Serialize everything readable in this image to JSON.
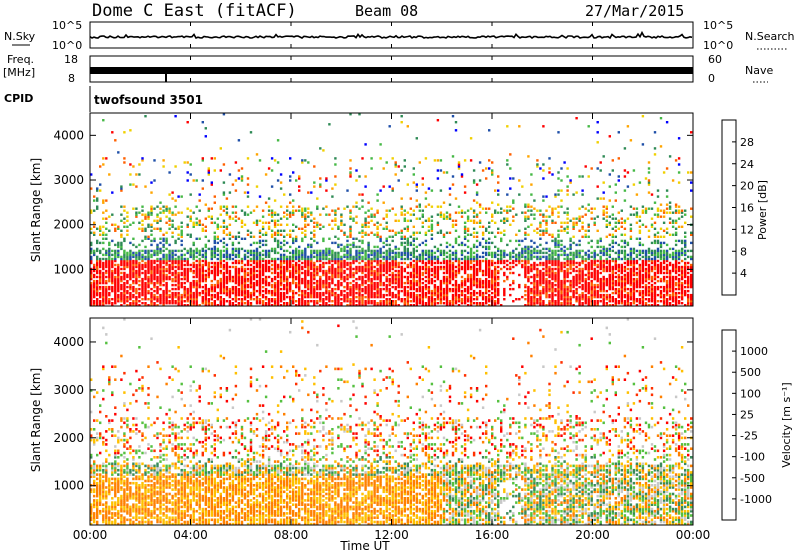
{
  "header": {
    "title": "Dome C East (fitACF)",
    "beam": "Beam 08",
    "date": "27/Mar/2015"
  },
  "strips": {
    "nsky_label": "N.Sky",
    "nsky_ticks": [
      "10^5",
      "10^0"
    ],
    "nsearch_label": "N.Search",
    "nsearch_ticks": [
      "10^5",
      "10^0"
    ],
    "freq_label_1": "Freq.",
    "freq_label_2": "[MHz]",
    "freq_ticks": [
      "18",
      "8"
    ],
    "nave_label": "Nave",
    "nave_ticks": [
      "60",
      "0"
    ],
    "cpid_label": "CPID",
    "cpid_value": "twofsound 3501"
  },
  "chart_data": [
    {
      "type": "heatmap",
      "name": "power",
      "ylabel": "Slant Range [km]",
      "yticks": [
        1000,
        2000,
        3000,
        4000
      ],
      "ylim": [
        180,
        4500
      ],
      "x_ticks": [
        "00:00",
        "04:00",
        "08:00",
        "12:00",
        "16:00",
        "20:00",
        "00:00"
      ],
      "xlim_hours": [
        0,
        24
      ],
      "colorbar": {
        "label": "Power [dB]",
        "ticks": [
          "28",
          "24",
          "20",
          "16",
          "12",
          "8",
          "4"
        ],
        "colors": [
          "#0000ff",
          "#1f4fa8",
          "#2e8a55",
          "#45b845",
          "#f0d000",
          "#ffa500",
          "#ff6000",
          "#ff0000"
        ]
      }
    },
    {
      "type": "heatmap",
      "name": "velocity",
      "ylabel": "Slant Range [km]",
      "yticks": [
        1000,
        2000,
        3000,
        4000
      ],
      "ylim": [
        180,
        4500
      ],
      "x_ticks": [
        "00:00",
        "04:00",
        "08:00",
        "12:00",
        "16:00",
        "20:00",
        "00:00"
      ],
      "xlabel": "Time UT",
      "colorbar": {
        "label": "Velocity [m s⁻¹]",
        "ticks": [
          "1000",
          "500",
          "100",
          "25",
          "-25",
          "-100",
          "-500",
          "-1000"
        ],
        "colors": [
          "#1f3fbf",
          "#2e6aa0",
          "#3a8a5a",
          "#55c040",
          "#c8c8c8",
          "#ffc000",
          "#ff8000",
          "#ff3000",
          "#ff0000"
        ]
      }
    }
  ]
}
